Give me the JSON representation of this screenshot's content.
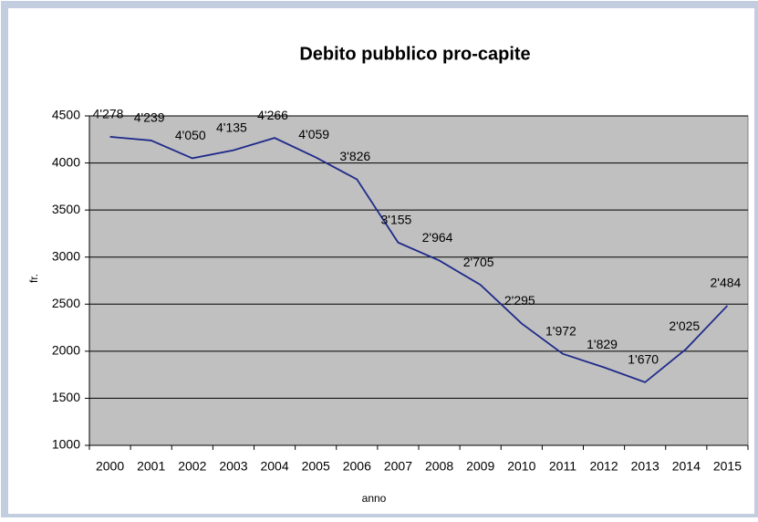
{
  "chart_data": {
    "type": "line",
    "title": "Debito pubblico pro-capite",
    "x_label": "anno",
    "y_label": "fr.",
    "categories": [
      "2000",
      "2001",
      "2002",
      "2003",
      "2004",
      "2005",
      "2006",
      "2007",
      "2008",
      "2009",
      "2010",
      "2011",
      "2012",
      "2013",
      "2014",
      "2015"
    ],
    "series": [
      {
        "name": "Debito pubblico pro-capite",
        "color": "#1f2a8a",
        "values": [
          4278,
          4239,
          4050,
          4135,
          4266,
          4059,
          3826,
          3155,
          2964,
          2705,
          2295,
          1972,
          1829,
          1670,
          2025,
          2484
        ],
        "value_labels": [
          "4'278",
          "4'239",
          "4'050",
          "4'135",
          "4'266",
          "4'059",
          "3'826",
          "3'155",
          "2'964",
          "2'705",
          "2'295",
          "1'972",
          "1'829",
          "1'670",
          "2'025",
          "2'484"
        ]
      }
    ],
    "ylim": [
      1000,
      4500
    ],
    "yticks": [
      1000,
      1500,
      2000,
      2500,
      3000,
      3500,
      4000,
      4500
    ],
    "grid": true
  }
}
